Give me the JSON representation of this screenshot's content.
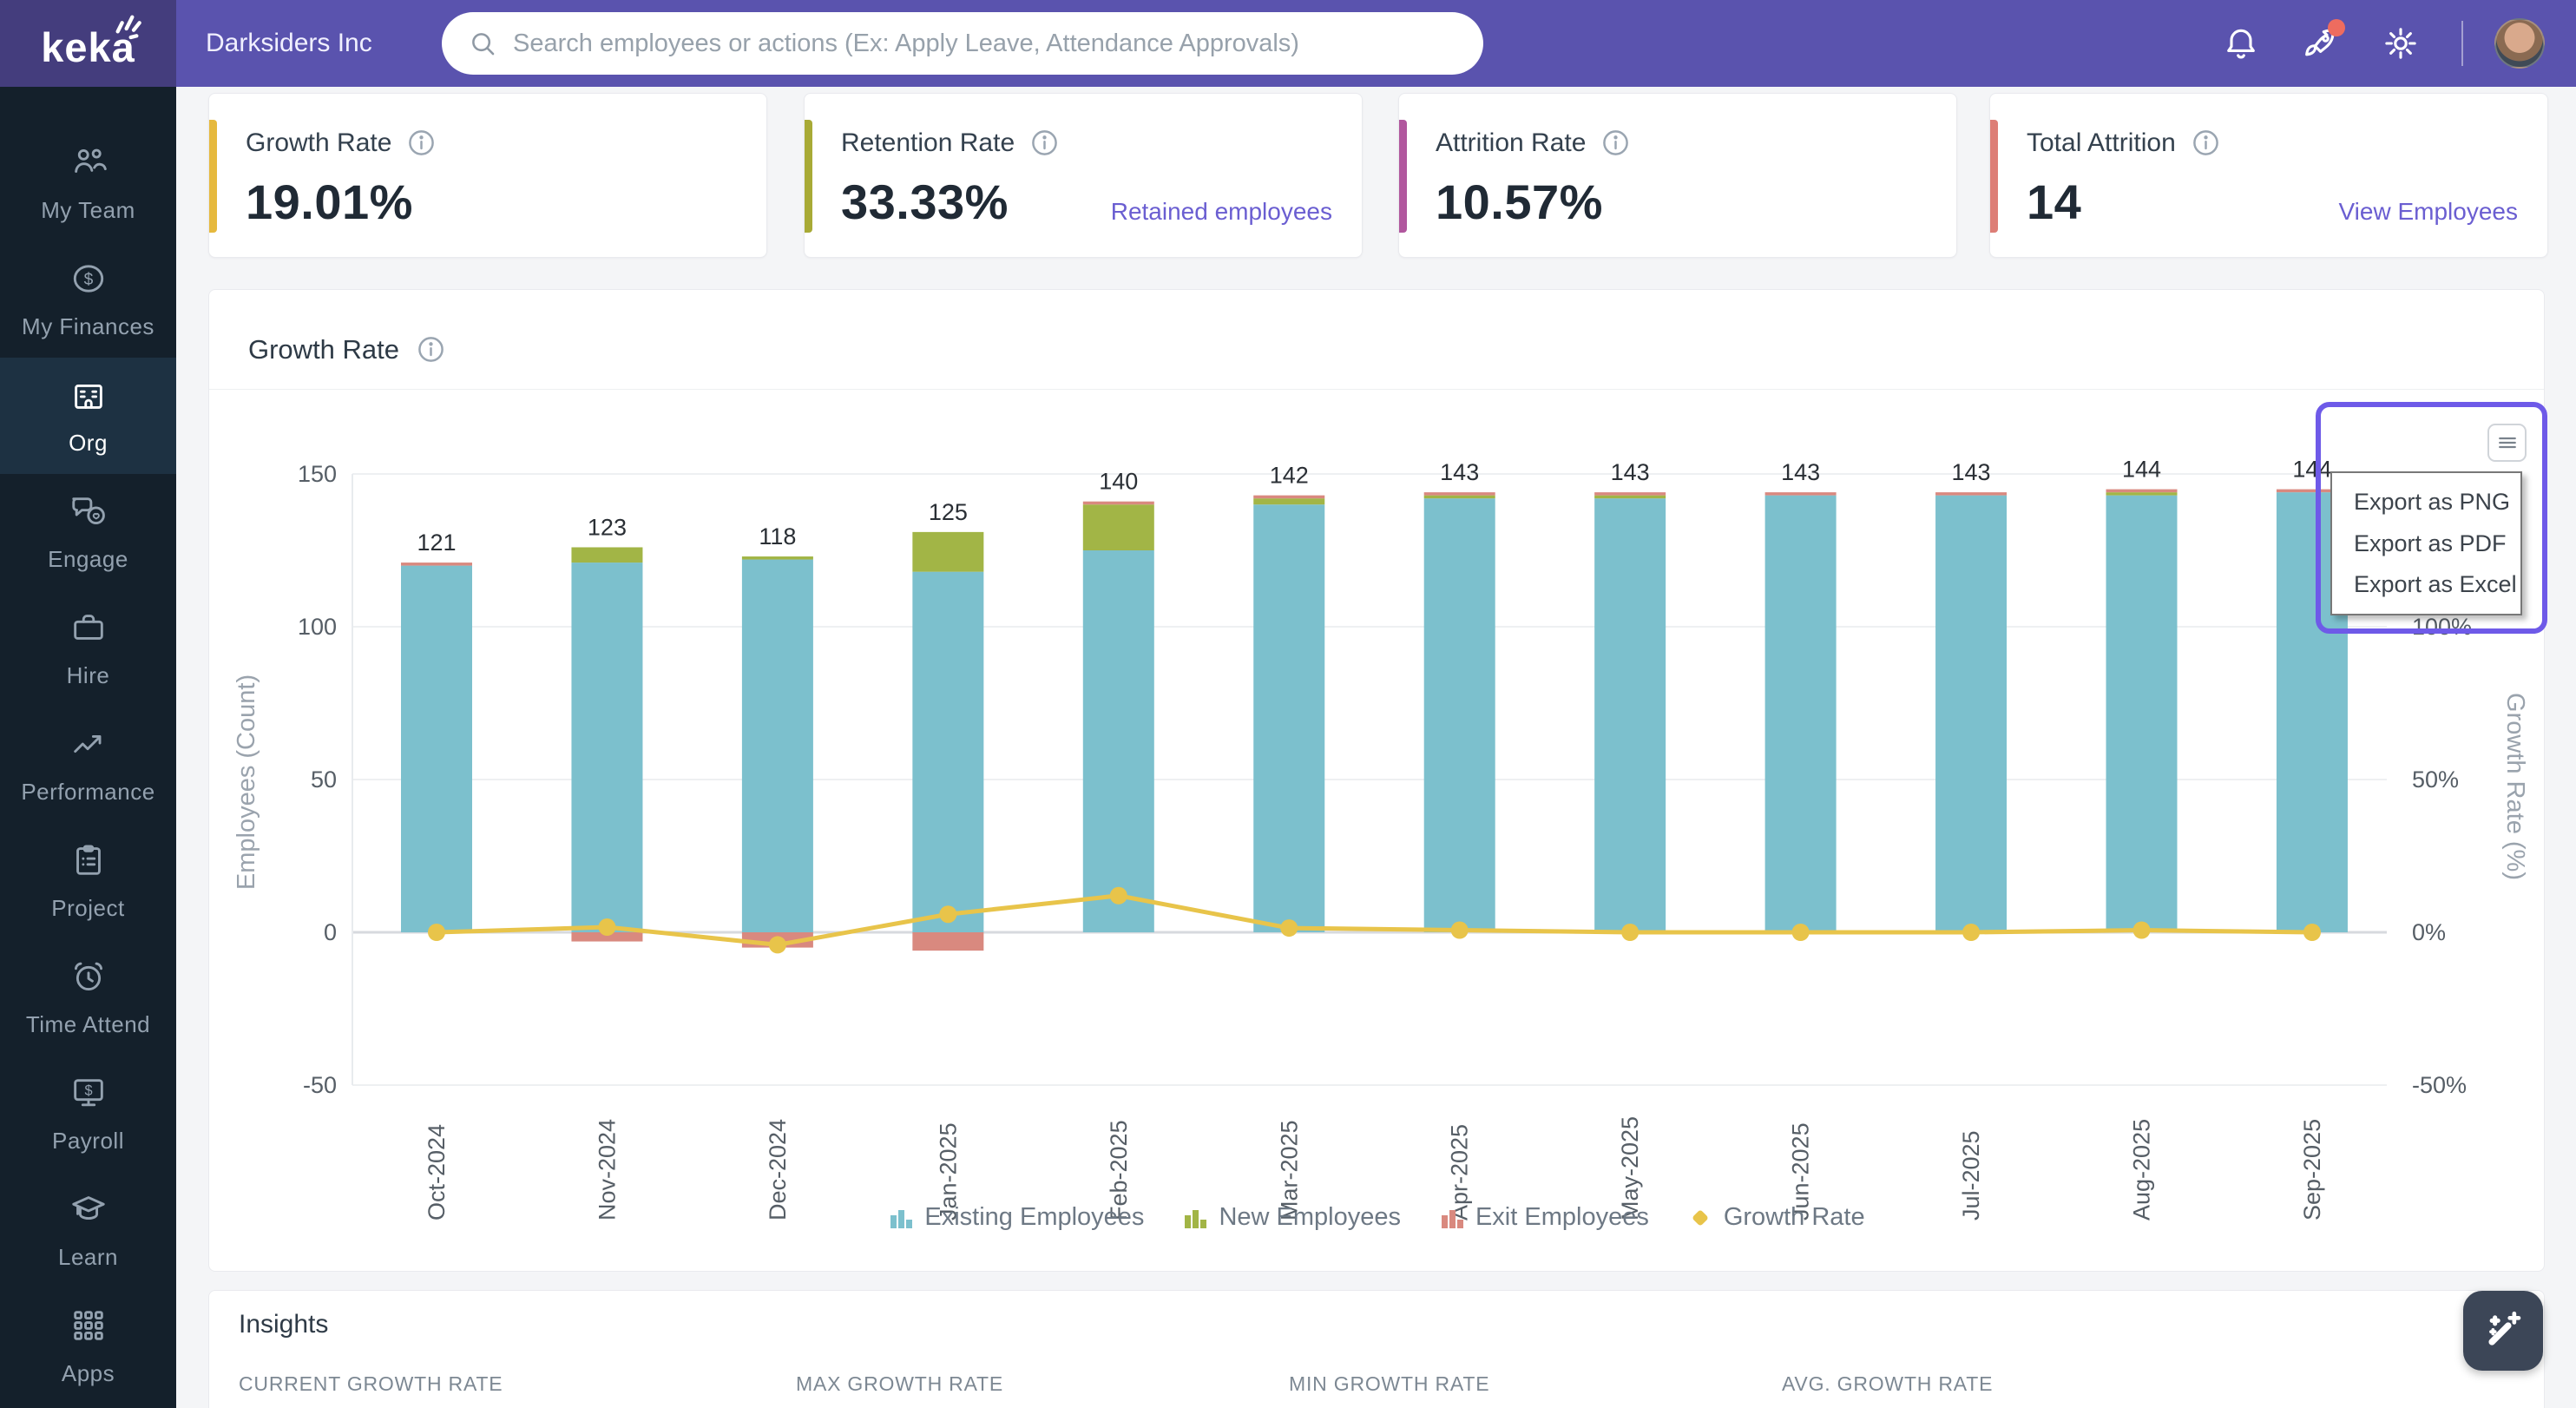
{
  "topbar": {
    "logo": "keka",
    "company": "Darksiders Inc",
    "search_placeholder": "Search employees or actions (Ex: Apply Leave, Attendance Approvals)",
    "notification_icons": [
      "bell-icon",
      "rocket-icon",
      "gear-icon"
    ],
    "rocket_badge_color": "#ee6c5f"
  },
  "sidebar": {
    "items": [
      {
        "label": "My Team",
        "icon": "people-icon",
        "active": false
      },
      {
        "label": "My Finances",
        "icon": "finances-icon",
        "active": false
      },
      {
        "label": "Org",
        "icon": "org-icon",
        "active": true
      },
      {
        "label": "Engage",
        "icon": "engage-icon",
        "active": false
      },
      {
        "label": "Hire",
        "icon": "hire-icon",
        "active": false
      },
      {
        "label": "Performance",
        "icon": "performance-icon",
        "active": false
      },
      {
        "label": "Project",
        "icon": "project-icon",
        "active": false
      },
      {
        "label": "Time Attend",
        "icon": "time-attend-icon",
        "active": false
      },
      {
        "label": "Payroll",
        "icon": "payroll-icon",
        "active": false
      },
      {
        "label": "Learn",
        "icon": "learn-icon",
        "active": false
      },
      {
        "label": "Apps",
        "icon": "apps-icon",
        "active": false
      }
    ]
  },
  "kpi_cards": [
    {
      "title": "Growth Rate",
      "value": "19.01%",
      "accent": "#e6b93e",
      "link": ""
    },
    {
      "title": "Retention Rate",
      "value": "33.33%",
      "accent": "#a8aa36",
      "link": "Retained employees"
    },
    {
      "title": "Attrition Rate",
      "value": "10.57%",
      "accent": "#b1579e",
      "link": ""
    },
    {
      "title": "Total Attrition",
      "value": "14",
      "accent": "#dd7e76",
      "link": "View Employees"
    }
  ],
  "chart_section": {
    "title": "Growth Rate"
  },
  "export_menu": {
    "items": [
      "Export as PNG",
      "Export as PDF",
      "Export as Excel"
    ]
  },
  "chart_data": {
    "type": "bar",
    "subtype": "stacked-bars-with-line",
    "title": "Growth Rate",
    "categories": [
      "Oct-2024",
      "Nov-2024",
      "Dec-2024",
      "Jan-2025",
      "Feb-2025",
      "Mar-2025",
      "Apr-2025",
      "May-2025",
      "Jun-2025",
      "Jul-2025",
      "Aug-2025",
      "Sep-2025"
    ],
    "series": [
      {
        "name": "Existing Employees",
        "color": "#7cc0cd",
        "values": [
          120,
          121,
          122,
          118,
          125,
          140,
          142,
          142,
          143,
          143,
          143,
          144
        ]
      },
      {
        "name": "New Employees",
        "color": "#a2b546",
        "values": [
          0,
          5,
          1,
          13,
          15,
          2,
          1,
          1,
          0,
          0,
          1,
          0
        ]
      },
      {
        "name": "Exit Employees",
        "color": "#d9897f",
        "values": [
          1,
          -3,
          -5,
          -6,
          1,
          1,
          1,
          1,
          1,
          1,
          1,
          1
        ]
      }
    ],
    "bar_total_labels": [
      121,
      123,
      118,
      125,
      140,
      142,
      143,
      143,
      143,
      143,
      144,
      144
    ],
    "line_series": {
      "name": "Growth Rate",
      "color": "#e8c44a",
      "values": [
        0,
        1.7,
        -4.1,
        5.9,
        12,
        1.4,
        0.7,
        0,
        0,
        0,
        0.7,
        0
      ]
    },
    "ylabel_left": "Employees (Count)",
    "yticks_left": [
      150,
      100,
      50,
      0,
      -50
    ],
    "ylim_left": [
      -50,
      150
    ],
    "ylabel_right": "Growth Rate (%)",
    "yticks_right": [
      100,
      50,
      0,
      -50
    ],
    "ylim_right": [
      -50,
      100
    ],
    "grid": true,
    "legend_position": "bottom",
    "legend": [
      "Existing Employees",
      "New Employees",
      "Exit Employees",
      "Growth Rate"
    ]
  },
  "insights": {
    "heading": "Insights",
    "labels": [
      "CURRENT GROWTH RATE",
      "MAX GROWTH RATE",
      "MIN GROWTH RATE",
      "AVG. GROWTH RATE"
    ]
  },
  "colors": {
    "topbar": "#5a53ae",
    "logo_block": "#443d7d",
    "sidebar": "#14202b",
    "sidebar_active": "#1d3142",
    "existing_bar": "#7cc0cd",
    "new_bar": "#a2b546",
    "exit_bar": "#d9897f",
    "growth_line": "#e8c44a",
    "link": "#6a5ed1",
    "export_focus_border": "#6e5ae8"
  }
}
